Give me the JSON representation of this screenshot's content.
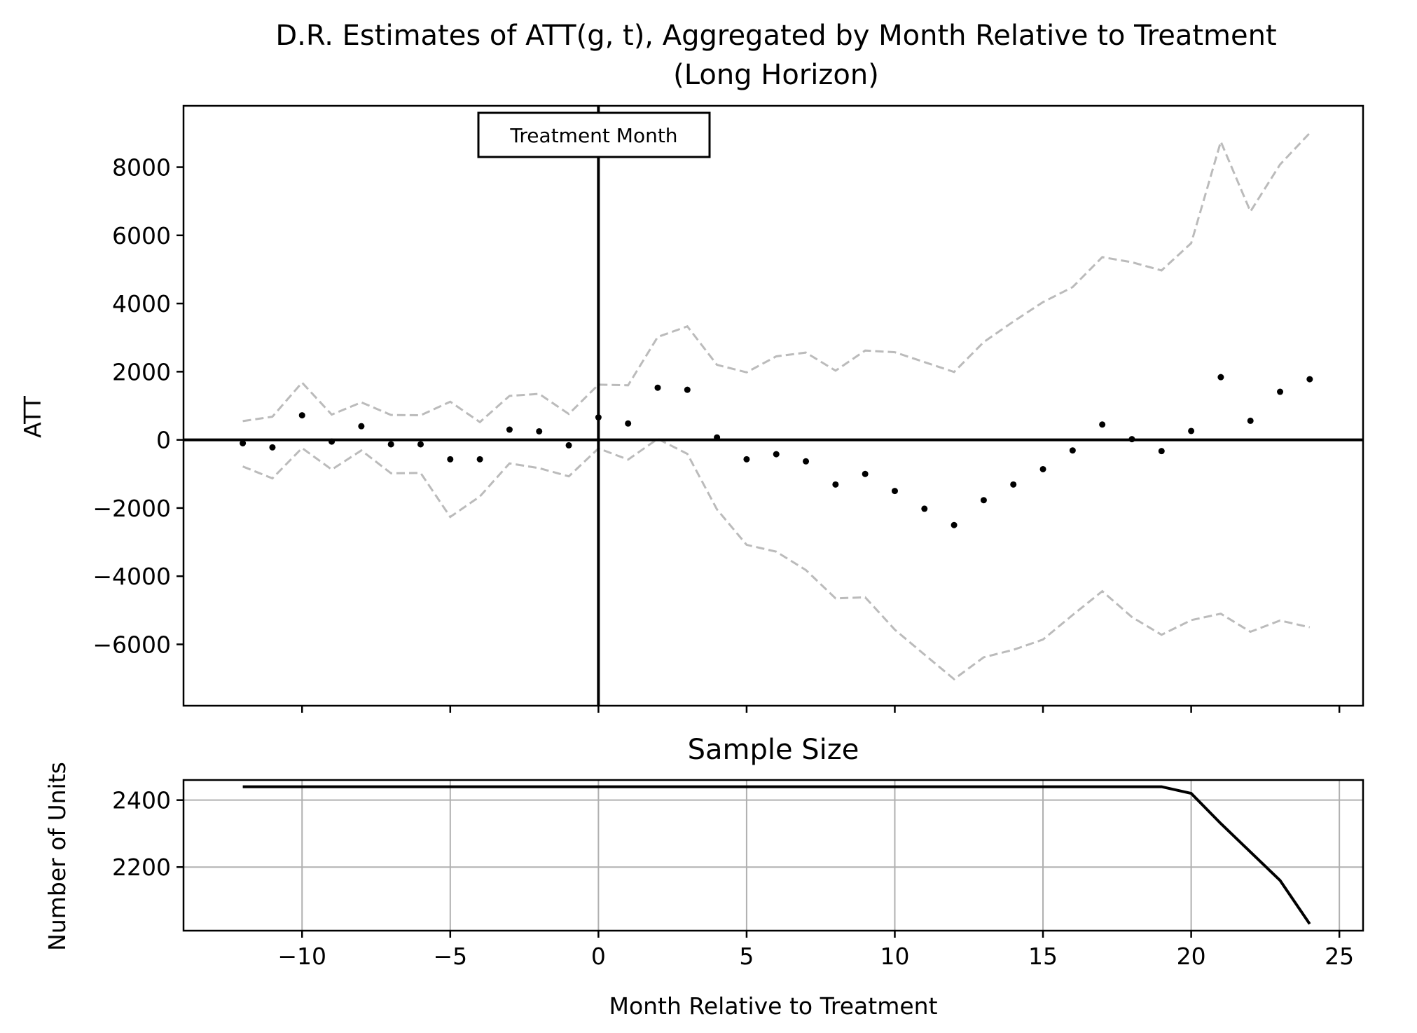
{
  "chart_data": [
    {
      "type": "scatter",
      "title_line1": "D.R. Estimates of ATT(g, t), Aggregated by Month Relative to Treatment",
      "title_line2": "(Long Horizon)",
      "xlabel": "",
      "ylabel": "ATT",
      "xlim": [
        -14,
        25.8
      ],
      "ylim": [
        -7800,
        9800
      ],
      "yticks": [
        -6000,
        -4000,
        -2000,
        0,
        2000,
        4000,
        6000,
        8000
      ],
      "ytick_labels": [
        "−6000",
        "−4000",
        "−2000",
        "0",
        "2000",
        "4000",
        "6000",
        "8000"
      ],
      "annotation": "Treatment Month",
      "treatment_month": 0,
      "x": [
        -12,
        -11,
        -10,
        -9,
        -8,
        -7,
        -6,
        -5,
        -4,
        -3,
        -2,
        -1,
        0,
        1,
        2,
        3,
        4,
        5,
        6,
        7,
        8,
        9,
        10,
        11,
        12,
        13,
        14,
        15,
        16,
        17,
        18,
        19,
        20,
        21,
        22,
        23,
        24
      ],
      "series": [
        {
          "name": "ATT estimate",
          "style": "points",
          "values": [
            -100,
            -220,
            720,
            -50,
            400,
            -130,
            -130,
            -570,
            -570,
            300,
            250,
            -160,
            660,
            480,
            1530,
            1470,
            70,
            -570,
            -420,
            -630,
            -1310,
            -1000,
            -1500,
            -2020,
            -2500,
            -1770,
            -1310,
            -860,
            -310,
            450,
            20,
            -330,
            260,
            1840,
            560,
            1410,
            1780
          ]
        },
        {
          "name": "Upper CI",
          "style": "dashed",
          "values": [
            550,
            680,
            1680,
            740,
            1100,
            730,
            720,
            1120,
            520,
            1290,
            1350,
            760,
            1620,
            1600,
            3020,
            3330,
            2200,
            1980,
            2450,
            2560,
            2030,
            2620,
            2570,
            2280,
            1990,
            2870,
            3470,
            4040,
            4480,
            5360,
            5210,
            4970,
            5770,
            8750,
            6700,
            8080,
            9000
          ]
        },
        {
          "name": "Lower CI",
          "style": "dashed",
          "values": [
            -780,
            -1130,
            -240,
            -870,
            -310,
            -980,
            -970,
            -2260,
            -1660,
            -690,
            -830,
            -1070,
            -250,
            -580,
            30,
            -410,
            -2040,
            -3080,
            -3280,
            -3820,
            -4650,
            -4620,
            -5570,
            -6300,
            -7020,
            -6380,
            -6160,
            -5860,
            -5140,
            -4440,
            -5200,
            -5720,
            -5290,
            -5100,
            -5630,
            -5300,
            -5500
          ]
        }
      ],
      "colors": {
        "points": "#000000",
        "ci": "#bbbbbb",
        "axes": "#000000"
      }
    },
    {
      "type": "line",
      "title": "Sample Size",
      "xlabel": "Month Relative to Treatment",
      "ylabel": "Number of Units",
      "xlim": [
        -14,
        25.8
      ],
      "ylim": [
        2010,
        2460
      ],
      "xticks": [
        -10,
        -5,
        0,
        5,
        10,
        15,
        20,
        25
      ],
      "xtick_labels": [
        "−10",
        "−5",
        "0",
        "5",
        "10",
        "15",
        "20",
        "25"
      ],
      "yticks": [
        2200,
        2400
      ],
      "ytick_labels": [
        "2200",
        "2400"
      ],
      "grid": true,
      "x": [
        -12,
        -11,
        -10,
        -9,
        -8,
        -7,
        -6,
        -5,
        -4,
        -3,
        -2,
        -1,
        0,
        1,
        2,
        3,
        4,
        5,
        6,
        7,
        8,
        9,
        10,
        11,
        12,
        13,
        14,
        15,
        16,
        17,
        18,
        19,
        20,
        21,
        22,
        23,
        24
      ],
      "series": [
        {
          "name": "Number of Units",
          "values": [
            2440,
            2440,
            2440,
            2440,
            2440,
            2440,
            2440,
            2440,
            2440,
            2440,
            2440,
            2440,
            2440,
            2440,
            2440,
            2440,
            2440,
            2440,
            2440,
            2440,
            2440,
            2440,
            2440,
            2440,
            2440,
            2440,
            2440,
            2440,
            2440,
            2440,
            2440,
            2440,
            2420,
            2330,
            2245,
            2160,
            2030
          ]
        }
      ],
      "colors": {
        "line": "#000000",
        "grid": "#b0b0b0"
      }
    }
  ]
}
